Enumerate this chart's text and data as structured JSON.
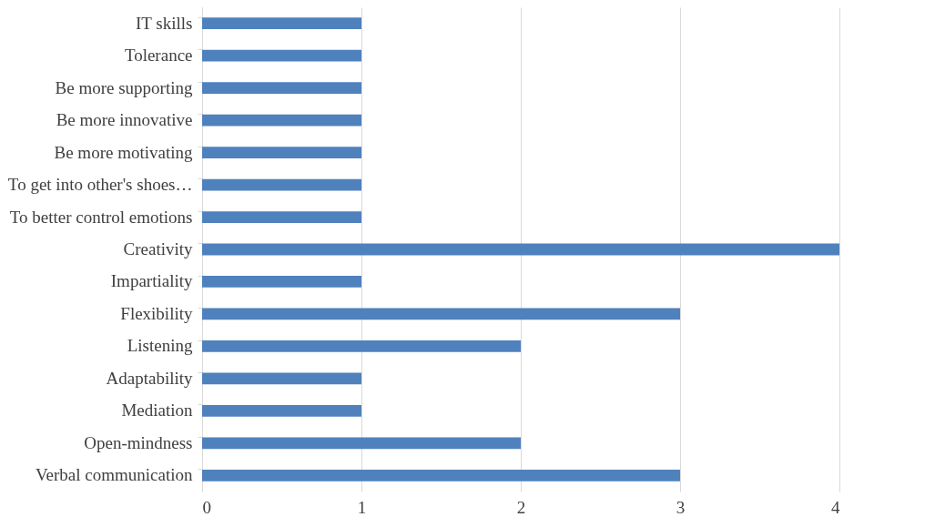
{
  "chart_data": {
    "type": "bar",
    "orientation": "horizontal",
    "categories": [
      "IT skills",
      "Tolerance ",
      "Be more supporting",
      "Be more innovative",
      "Be more motivating",
      "To get into other's shoes…",
      "To better control emotions",
      "Creativity",
      "Impartiality",
      "Flexibility",
      "Listening",
      "Adaptability",
      "Mediation",
      "Open-mindness",
      "Verbal communication"
    ],
    "values": [
      1,
      1,
      1,
      1,
      1,
      1,
      1,
      4,
      1,
      3,
      2,
      1,
      1,
      2,
      3
    ],
    "color": "#4f81bd",
    "xlim": [
      0,
      4
    ],
    "xticks": [
      0,
      1,
      2,
      3,
      4
    ],
    "grid": "x"
  }
}
